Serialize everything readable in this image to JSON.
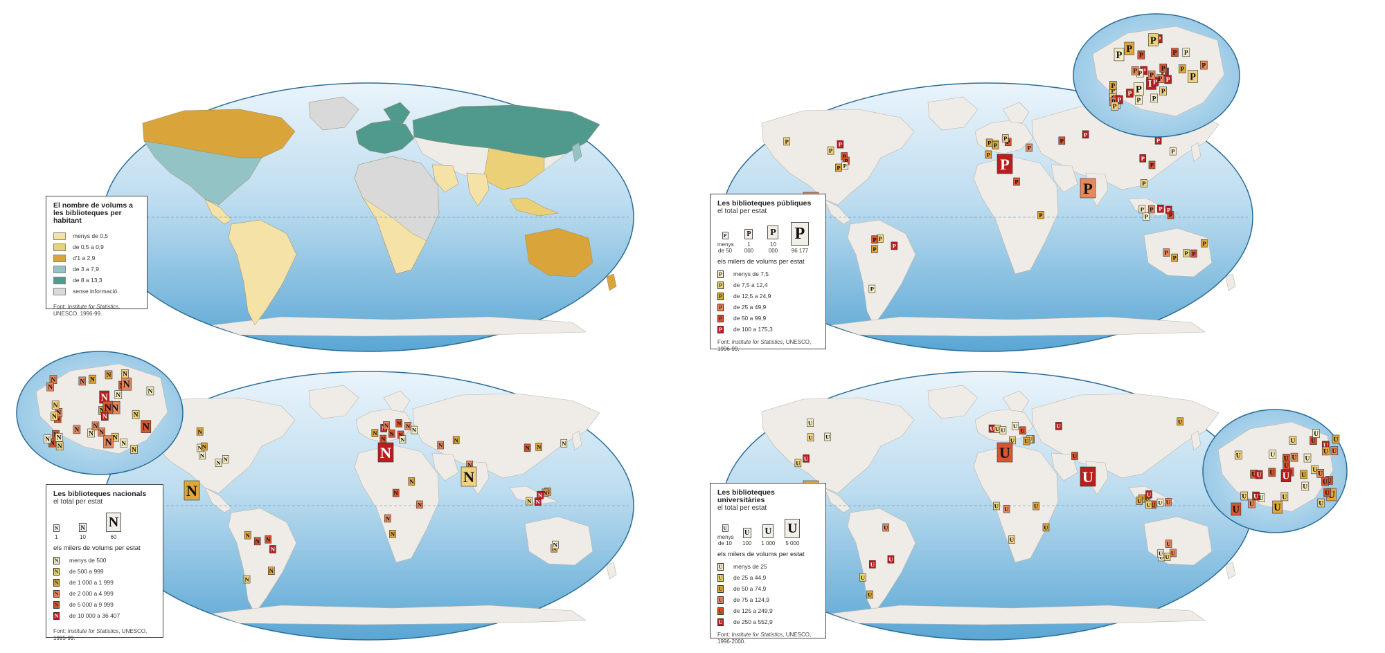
{
  "colors": {
    "ocean_top": "#e6f2fa",
    "ocean_bottom": "#5aa6d4",
    "land": "#efece7",
    "land_stroke": "#b9b3aa",
    "ice": "#f3f4f5",
    "border": "#2b6c96"
  },
  "map1": {
    "legend": {
      "title": "El nombre de volums a les biblioteques per habitant",
      "items": [
        {
          "label": "menys de 0,5",
          "color": "#f5e2a6"
        },
        {
          "label": "de 0,5 a 0,9",
          "color": "#ecd078"
        },
        {
          "label": "d'1 a 2,9",
          "color": "#d9a43a"
        },
        {
          "label": "de 3 a 7,9",
          "color": "#93c3c4"
        },
        {
          "label": "de 8 a 13,3",
          "color": "#4f9a8c"
        },
        {
          "label": "sense informació",
          "color": "#d9d9d9"
        }
      ],
      "source_prefix": "Font: ",
      "source_italic": "Institute for Statistics",
      "source_suffix": ", UNESCO, 1996-99."
    }
  },
  "map2": {
    "legend": {
      "title": "Les biblioteques públiques",
      "subtitle": "el total per estat",
      "letter": "P",
      "sizes": [
        "menys de 50",
        "1 000",
        "10 000",
        "96 177"
      ],
      "volumes_title": "els milers de volums per estat",
      "items": [
        {
          "label": "menys de 7,5",
          "color": "#f6ecc4"
        },
        {
          "label": "de 7,5 a 12,4",
          "color": "#efd27e"
        },
        {
          "label": "de 12,5 a 24,9",
          "color": "#dfa63a"
        },
        {
          "label": "de 25 a 49,9",
          "color": "#e8885a"
        },
        {
          "label": "de 50 a 99,9",
          "color": "#d7552f"
        },
        {
          "label": "de 100 a 175,3",
          "color": "#b81e1e"
        }
      ],
      "source_prefix": "Font: ",
      "source_italic": "Institute for Statistics",
      "source_suffix": ", UNESCO, 1996-99."
    }
  },
  "map3": {
    "legend": {
      "title": "Les biblioteques nacionals",
      "subtitle": "el total per estat",
      "letter": "N",
      "sizes": [
        "1",
        "10",
        "60"
      ],
      "volumes_title": "els milers de volums per estat",
      "items": [
        {
          "label": "menys de 500",
          "color": "#f6ecc4"
        },
        {
          "label": "de 500 a 999",
          "color": "#efd27e"
        },
        {
          "label": "de 1 000 a 1 999",
          "color": "#dfa63a"
        },
        {
          "label": "de 2 000 a 4 999",
          "color": "#e8885a"
        },
        {
          "label": "de 5 000 a 9 999",
          "color": "#d7552f"
        },
        {
          "label": "de 10 000 a 36 407",
          "color": "#b81e1e"
        }
      ],
      "source_prefix": "Font: ",
      "source_italic": "Institute for Statistics",
      "source_suffix": ", UNESCO, 1995-99."
    }
  },
  "map4": {
    "legend": {
      "title": "Les biblioteques universitàries",
      "subtitle": "el total per estat",
      "letter": "U",
      "sizes": [
        "menys de 10",
        "100",
        "1 000",
        "5 000"
      ],
      "volumes_title": "els milers de volums per estat",
      "items": [
        {
          "label": "menys de 25",
          "color": "#f6ecc4"
        },
        {
          "label": "de 25 a 44,9",
          "color": "#efd27e"
        },
        {
          "label": "de 50 a 74,9",
          "color": "#dfa63a"
        },
        {
          "label": "de 75 a 124,9",
          "color": "#e8885a"
        },
        {
          "label": "de 125 a 249,9",
          "color": "#d7552f"
        },
        {
          "label": "de 250 a 552,9",
          "color": "#b81e1e"
        }
      ],
      "source_prefix": "Font: ",
      "source_italic": "Institute for Statistics",
      "source_suffix": ", UNESCO, 1996-2000."
    }
  }
}
